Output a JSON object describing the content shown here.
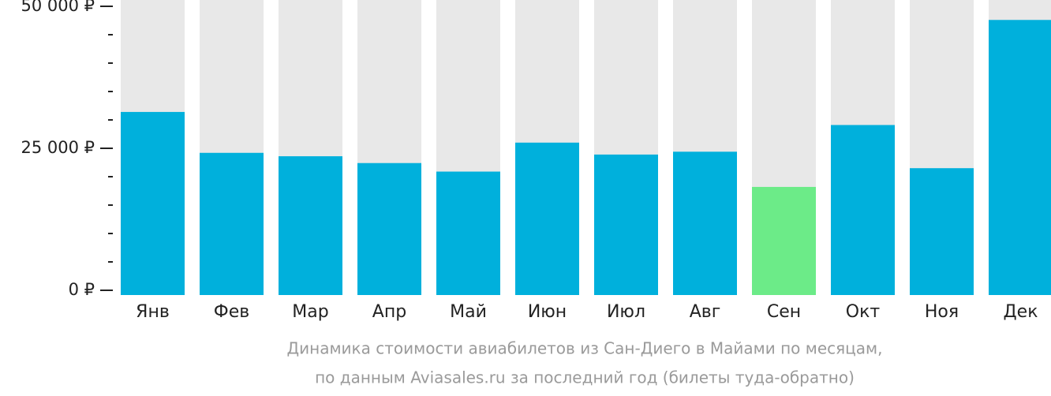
{
  "chart_data": {
    "type": "bar",
    "categories": [
      "Янв",
      "Фев",
      "Мар",
      "Апр",
      "Май",
      "Июн",
      "Июл",
      "Авг",
      "Сен",
      "Окт",
      "Ноя",
      "Дек"
    ],
    "values": [
      31400,
      24200,
      23600,
      22400,
      20900,
      26000,
      23900,
      24400,
      18200,
      29100,
      21500,
      47600
    ],
    "colors": [
      "#00b0dc",
      "#00b0dc",
      "#00b0dc",
      "#00b0dc",
      "#00b0dc",
      "#00b0dc",
      "#00b0dc",
      "#00b0dc",
      "#6ceb88",
      "#00b0dc",
      "#00b0dc",
      "#00b0dc"
    ],
    "ylim": [
      0,
      50000
    ],
    "yticks": [
      {
        "value": 0,
        "label": "0 ₽"
      },
      {
        "value": 25000,
        "label": "25 000 ₽"
      },
      {
        "value": 50000,
        "label": "50 000 ₽"
      }
    ],
    "yticks_minor": [
      5000,
      10000,
      15000,
      20000,
      30000,
      35000,
      40000,
      45000
    ],
    "caption": [
      "Динамика стоимости авиабилетов из Сан-Диего в Майами по месяцам,",
      "по данным Aviasales.ru за последний год (билеты туда-обратно)"
    ]
  }
}
